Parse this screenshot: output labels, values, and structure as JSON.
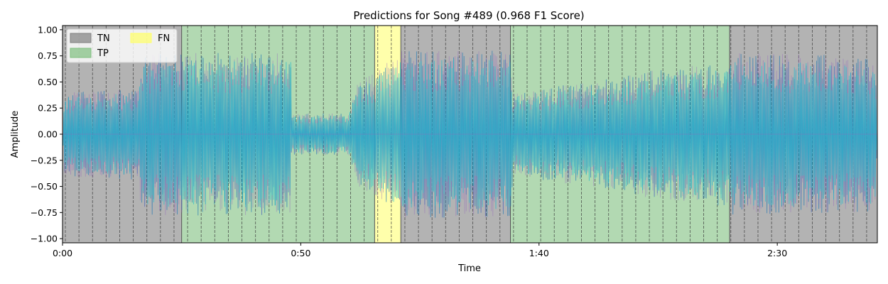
{
  "chart_data": {
    "type": "area",
    "title": "Predictions for Song #489 (0.968 F1 Score)",
    "xlabel": "Time",
    "ylabel": "Amplitude",
    "xlim": [
      0,
      171
    ],
    "ylim": [
      -1.04,
      1.04
    ],
    "x_ticks": [
      {
        "value": 0,
        "label": "0:00"
      },
      {
        "value": 50,
        "label": "0:50"
      },
      {
        "value": 100,
        "label": "1:40"
      },
      {
        "value": 150,
        "label": "2:30"
      }
    ],
    "y_ticks": [
      {
        "value": 1.0,
        "label": "1.00"
      },
      {
        "value": 0.75,
        "label": "0.75"
      },
      {
        "value": 0.5,
        "label": "0.50"
      },
      {
        "value": 0.25,
        "label": "0.25"
      },
      {
        "value": 0.0,
        "label": "0.00"
      },
      {
        "value": -0.25,
        "label": "−0.25"
      },
      {
        "value": -0.5,
        "label": "−0.50"
      },
      {
        "value": -0.75,
        "label": "−0.75"
      },
      {
        "value": -1.0,
        "label": "−1.00"
      }
    ],
    "legend": {
      "placement": "top-left",
      "entries": [
        {
          "label": "TN",
          "color": "#808080"
        },
        {
          "label": "TP",
          "color": "#7fbf7f"
        },
        {
          "label": "FN",
          "color": "#ffff66"
        }
      ]
    },
    "segments": [
      {
        "class": "TN",
        "start": 0,
        "end": 25
      },
      {
        "class": "TP",
        "start": 25,
        "end": 65.5
      },
      {
        "class": "FN",
        "start": 65.5,
        "end": 71
      },
      {
        "class": "TN",
        "start": 71,
        "end": 94
      },
      {
        "class": "TP",
        "start": 94,
        "end": 140
      },
      {
        "class": "TN",
        "start": 140,
        "end": 171
      }
    ],
    "segment_colors": {
      "TN": "#808080",
      "TP": "#7fbf7f",
      "FN": "#ffff66"
    },
    "beat_interval_s": 2.85,
    "waveform_envelope": [
      {
        "t": 0,
        "amp": 0.02
      },
      {
        "t": 0.5,
        "amp": 0.4
      },
      {
        "t": 16,
        "amp": 0.44
      },
      {
        "t": 16.5,
        "amp": 0.78
      },
      {
        "t": 48,
        "amp": 0.78
      },
      {
        "t": 47.5,
        "amp": 0.2
      },
      {
        "t": 60,
        "amp": 0.2
      },
      {
        "t": 62,
        "amp": 0.5
      },
      {
        "t": 66,
        "amp": 0.6
      },
      {
        "t": 71,
        "amp": 0.8
      },
      {
        "t": 94,
        "amp": 0.8
      },
      {
        "t": 94.5,
        "amp": 0.4
      },
      {
        "t": 118,
        "amp": 0.55
      },
      {
        "t": 122,
        "amp": 0.6
      },
      {
        "t": 140,
        "amp": 0.7
      },
      {
        "t": 140.5,
        "amp": 0.78
      },
      {
        "t": 170.5,
        "amp": 0.75
      },
      {
        "t": 171,
        "amp": 0.02
      }
    ],
    "series": [
      {
        "color": "#1f77b4"
      },
      {
        "color": "#9467bd"
      },
      {
        "color": "#17becf"
      }
    ]
  }
}
